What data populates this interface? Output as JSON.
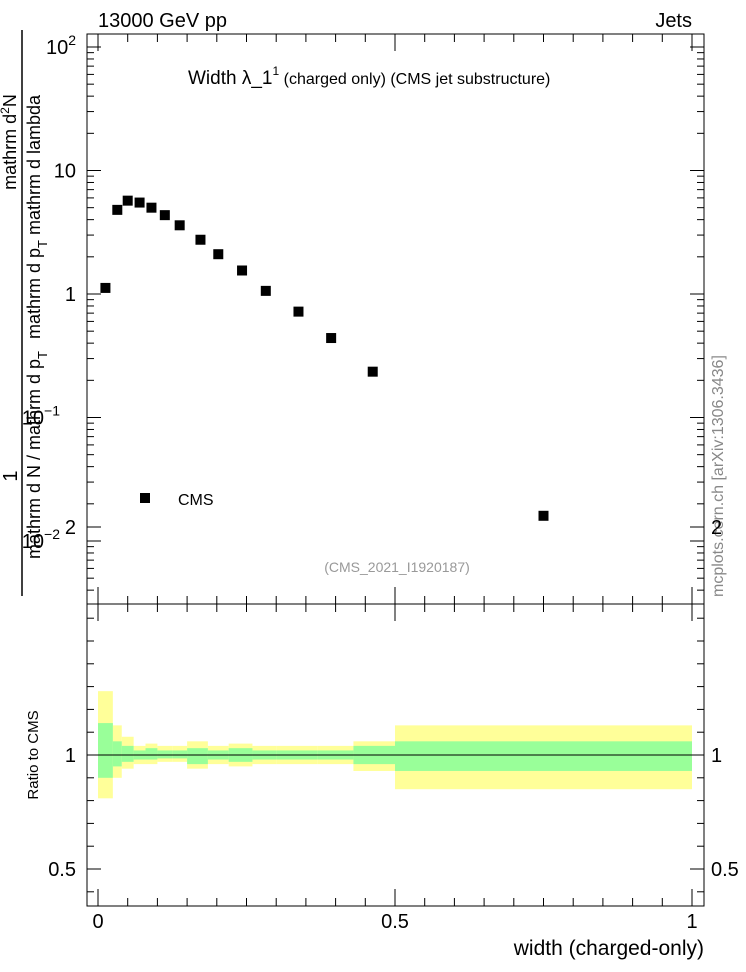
{
  "header": {
    "left": "13000 GeV pp",
    "right": "Jets"
  },
  "side_credit": "mcplots.cern.ch [arXiv:1306.3436]",
  "analysis_id": "(CMS_2021_I1920187)",
  "chart_data": [
    {
      "type": "scatter",
      "title": "Width λ_1¹ (charged only) (CMS jet substructure)",
      "title_main": "Width λ_1",
      "title_sup": "1",
      "title_rest": " (charged only) (CMS jet substructure)",
      "ylabel_numerator": "1",
      "ylabel_denominator": "mathrm d N / mathrm d p_T mathrm d²N / mathrm d p_T mathrm d lambda",
      "ylabel_parts": {
        "num_top": "mathrm d",
        "num_sup": "2",
        "num_bottom_a": "N",
        "num_bottom_b": "mathrm d p",
        "num_sub": "T",
        "num_tail": " mathrm d lambda",
        "den_a": "mathrm d N / mathrm d p",
        "den_sub": "T"
      },
      "xlabel": "width (charged-only)",
      "y_scale": "log",
      "xlim": [
        0,
        1
      ],
      "ylim": [
        0.003,
        130
      ],
      "x_ticks": [
        {
          "value": 0,
          "label": "0"
        },
        {
          "value": 0.5,
          "label": "0.5"
        },
        {
          "value": 1,
          "label": "1"
        }
      ],
      "y_ticks": [
        {
          "value": 0.01,
          "base": "10",
          "exp": "−2"
        },
        {
          "value": 0.1,
          "base": "10",
          "exp": "−1"
        },
        {
          "value": 1,
          "base": "1",
          "exp": ""
        },
        {
          "value": 10,
          "base": "10",
          "exp": ""
        },
        {
          "value": 100,
          "base": "10",
          "exp": "2"
        }
      ],
      "legend": {
        "position": "bottom-left",
        "entries": [
          {
            "name": "CMS",
            "marker": "square"
          }
        ]
      },
      "series": [
        {
          "name": "CMS",
          "color": "#000000",
          "marker": "square",
          "points": [
            {
              "x": 0.0125,
              "y": 1.12
            },
            {
              "x": 0.0325,
              "y": 4.8
            },
            {
              "x": 0.05,
              "y": 5.7
            },
            {
              "x": 0.07,
              "y": 5.5
            },
            {
              "x": 0.09,
              "y": 5.0
            },
            {
              "x": 0.1125,
              "y": 4.35
            },
            {
              "x": 0.1375,
              "y": 3.6
            },
            {
              "x": 0.1725,
              "y": 2.75
            },
            {
              "x": 0.2025,
              "y": 2.1
            },
            {
              "x": 0.2425,
              "y": 1.55
            },
            {
              "x": 0.2825,
              "y": 1.06
            },
            {
              "x": 0.3375,
              "y": 0.72
            },
            {
              "x": 0.3925,
              "y": 0.44
            },
            {
              "x": 0.4625,
              "y": 0.235
            },
            {
              "x": 0.75,
              "y": 0.016
            }
          ]
        }
      ]
    },
    {
      "type": "area",
      "ylabel": "Ratio to CMS",
      "xlim": [
        0,
        1
      ],
      "ylim": [
        0.33,
        2.3
      ],
      "y_ticks": [
        {
          "value": 0.5,
          "label": "0.5"
        },
        {
          "value": 1,
          "label": "1"
        },
        {
          "value": 2,
          "label": "2"
        }
      ],
      "x_ticks": [
        {
          "value": 0,
          "label": "0"
        },
        {
          "value": 0.5,
          "label": "0.5"
        },
        {
          "value": 1,
          "label": "1"
        }
      ],
      "reference_line": 1,
      "bands": {
        "outer_color": "#ffff99",
        "inner_color": "#99ff99",
        "bins": [
          {
            "x0": 0.0,
            "x1": 0.025,
            "outer": [
              0.81,
              1.28
            ],
            "inner": [
              0.9,
              1.14
            ]
          },
          {
            "x0": 0.025,
            "x1": 0.04,
            "outer": [
              0.9,
              1.13
            ],
            "inner": [
              0.95,
              1.06
            ]
          },
          {
            "x0": 0.04,
            "x1": 0.06,
            "outer": [
              0.94,
              1.08
            ],
            "inner": [
              0.97,
              1.04
            ]
          },
          {
            "x0": 0.06,
            "x1": 0.08,
            "outer": [
              0.96,
              1.04
            ],
            "inner": [
              0.98,
              1.02
            ]
          },
          {
            "x0": 0.08,
            "x1": 0.1,
            "outer": [
              0.96,
              1.05
            ],
            "inner": [
              0.98,
              1.03
            ]
          },
          {
            "x0": 0.1,
            "x1": 0.125,
            "outer": [
              0.97,
              1.04
            ],
            "inner": [
              0.985,
              1.02
            ]
          },
          {
            "x0": 0.125,
            "x1": 0.15,
            "outer": [
              0.97,
              1.04
            ],
            "inner": [
              0.985,
              1.02
            ]
          },
          {
            "x0": 0.15,
            "x1": 0.185,
            "outer": [
              0.94,
              1.06
            ],
            "inner": [
              0.96,
              1.03
            ]
          },
          {
            "x0": 0.185,
            "x1": 0.22,
            "outer": [
              0.96,
              1.04
            ],
            "inner": [
              0.98,
              1.02
            ]
          },
          {
            "x0": 0.22,
            "x1": 0.26,
            "outer": [
              0.95,
              1.05
            ],
            "inner": [
              0.97,
              1.03
            ]
          },
          {
            "x0": 0.26,
            "x1": 0.3,
            "outer": [
              0.96,
              1.04
            ],
            "inner": [
              0.98,
              1.02
            ]
          },
          {
            "x0": 0.3,
            "x1": 0.37,
            "outer": [
              0.96,
              1.04
            ],
            "inner": [
              0.98,
              1.02
            ]
          },
          {
            "x0": 0.37,
            "x1": 0.43,
            "outer": [
              0.96,
              1.04
            ],
            "inner": [
              0.98,
              1.02
            ]
          },
          {
            "x0": 0.43,
            "x1": 0.5,
            "outer": [
              0.93,
              1.06
            ],
            "inner": [
              0.96,
              1.04
            ]
          },
          {
            "x0": 0.5,
            "x1": 1.0,
            "outer": [
              0.85,
              1.13
            ],
            "inner": [
              0.93,
              1.06
            ]
          }
        ]
      }
    }
  ]
}
